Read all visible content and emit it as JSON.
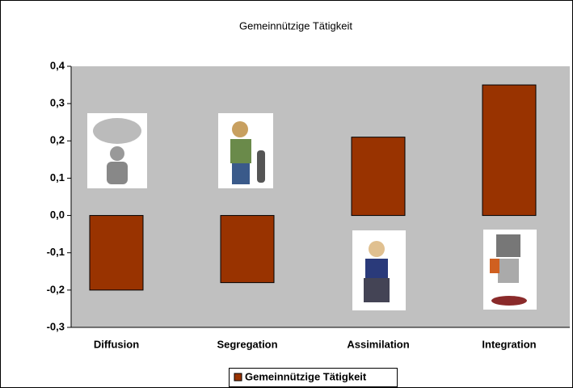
{
  "chart_data": {
    "type": "bar",
    "title": "Gemeinnützige Tätigkeit",
    "categories": [
      "Diffusion",
      "Segregation",
      "Assimilation",
      "Integration"
    ],
    "series": [
      {
        "name": "Gemeinnützige Tätigkeit",
        "color": "#993300",
        "values": [
          -0.2,
          -0.18,
          0.21,
          0.35
        ]
      }
    ],
    "ylim": [
      -0.3,
      0.4
    ],
    "yticks": [
      {
        "value": -0.3,
        "label": "-0,3"
      },
      {
        "value": -0.2,
        "label": "-0,2"
      },
      {
        "value": -0.1,
        "label": "-0,1"
      },
      {
        "value": 0,
        "label": "0,0"
      },
      {
        "value": 0.1,
        "label": "0,1"
      },
      {
        "value": 0.2,
        "label": "0,2"
      },
      {
        "value": 0.3,
        "label": "0,3"
      },
      {
        "value": 0.4,
        "label": "0,4"
      }
    ],
    "grid": false,
    "legend": "bottom"
  }
}
